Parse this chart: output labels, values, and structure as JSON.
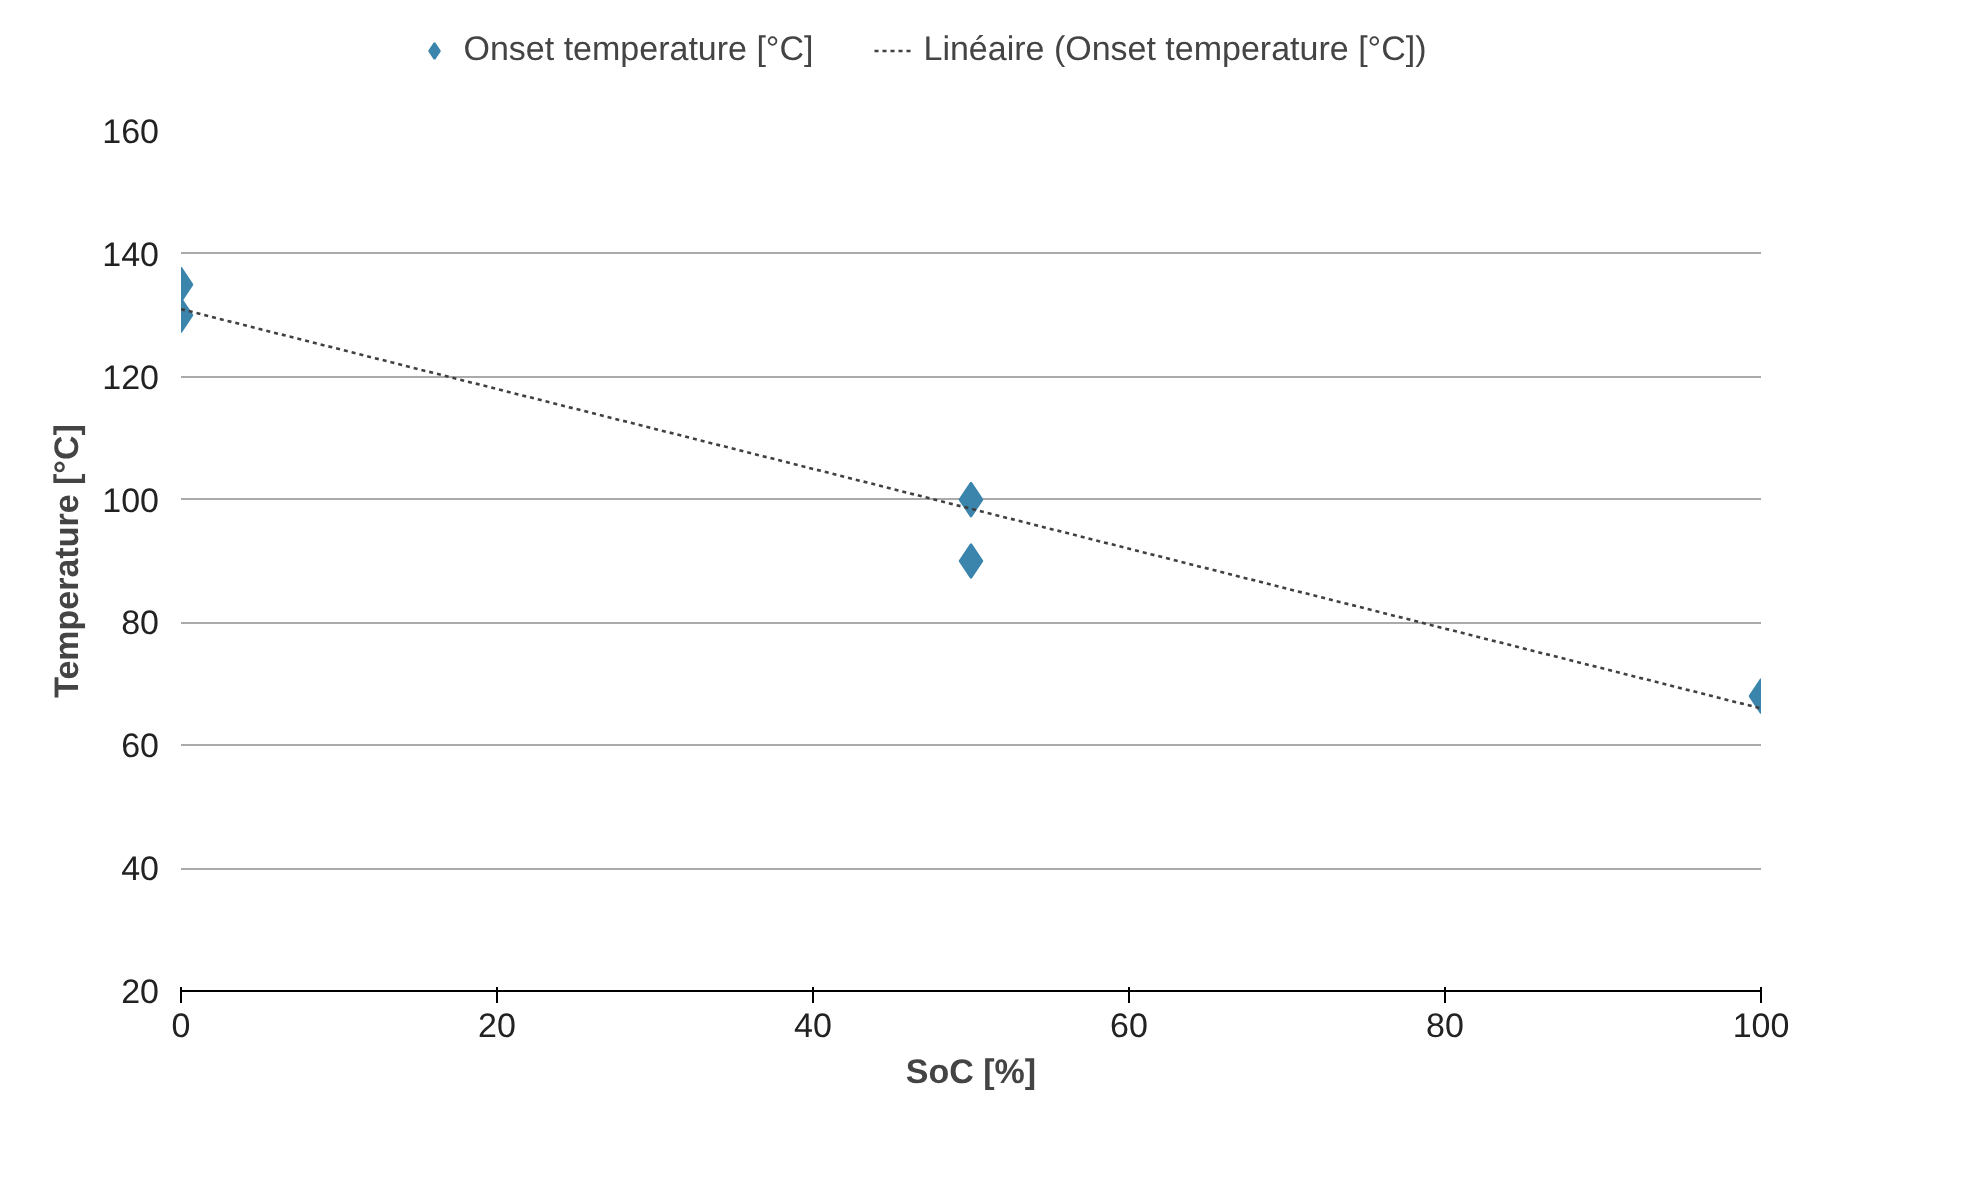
{
  "chart_data": {
    "type": "scatter",
    "xlabel": "SoC [%]",
    "ylabel": "Temperature [°C]",
    "xlim": [
      0,
      100
    ],
    "xticks": [
      0,
      20,
      40,
      60,
      80,
      100
    ],
    "ylim": [
      20,
      160
    ],
    "yticks": [
      20,
      40,
      60,
      80,
      100,
      120,
      140,
      160
    ],
    "grid": "y",
    "legend": "top",
    "marker": "diamond",
    "series": [
      {
        "name": "Onset temperature [°C]",
        "color": "#3b85ad",
        "x": [
          0,
          0,
          50,
          50,
          100
        ],
        "values": [
          135,
          130,
          100,
          90,
          68
        ]
      },
      {
        "name": "Linéaire (Onset temperature [°C])",
        "type": "line",
        "line_style": "dotted",
        "marker": "none",
        "color": "#404040",
        "x": [
          0,
          100
        ],
        "values": [
          131,
          66
        ]
      }
    ]
  }
}
